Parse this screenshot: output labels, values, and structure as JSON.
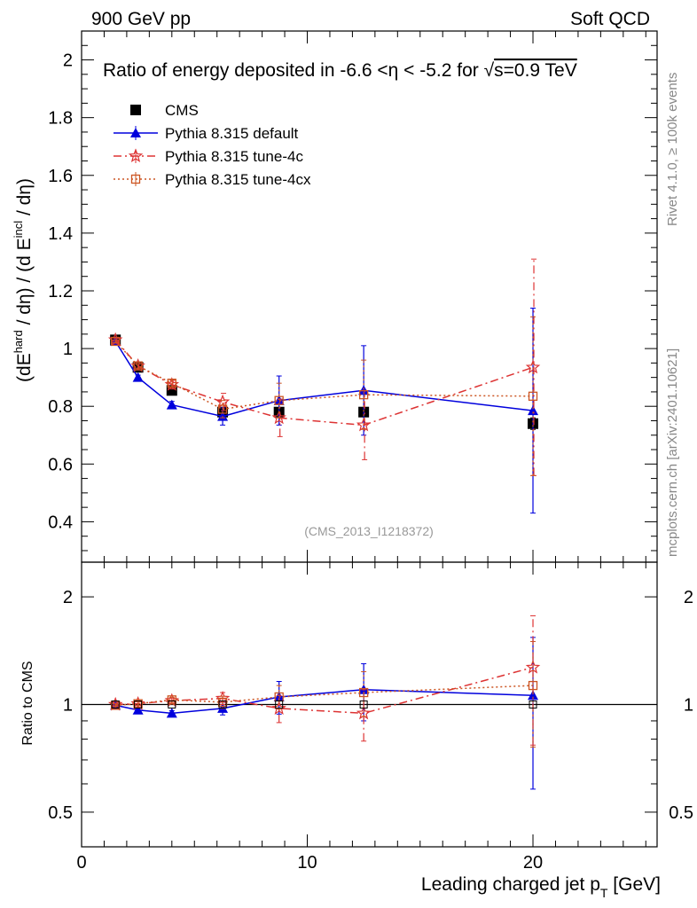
{
  "header": {
    "left": "900 GeV pp",
    "right": "Soft QCD"
  },
  "side_labels": {
    "rivet": "Rivet 4.1.0, ≥ 100k events",
    "mcplots": "mcplots.cern.ch [arXiv:2401.10621]"
  },
  "chart_data": [
    {
      "panel": "main",
      "type": "scatter",
      "title": "Ratio of energy deposited in -6.6 <η < -5.2 for √s=0.9 TeV",
      "title_parts": {
        "prefix": "Ratio of energy deposited in -6.6 <",
        "eta": "η",
        "middle": " < -5.2 for ",
        "sqrt": "√",
        "s_eq": "s=0.9 TeV"
      },
      "ylabel_parts": {
        "open": "(dE",
        "sup1": "hard",
        "mid": " / dη) / (d E",
        "sup2": "incl",
        "close": " / dη)"
      },
      "watermark": "(CMS_2013_I1218372)",
      "xlim": [
        0,
        25.5
      ],
      "ylim": [
        0.26,
        2.1
      ],
      "yticks": [
        0.4,
        0.6,
        0.8,
        1,
        1.2,
        1.4,
        1.6,
        1.8,
        2
      ],
      "ytick_labels": [
        "0.4",
        "0.6",
        "0.8",
        "1",
        "1.2",
        "1.4",
        "1.6",
        "1.8",
        "2"
      ],
      "legend_position": "top-left",
      "series": [
        {
          "name": "CMS",
          "style": "data",
          "color": "#000000",
          "x": [
            1.5,
            2.5,
            4.0,
            6.25,
            8.75,
            12.5,
            20.0
          ],
          "y": [
            1.03,
            0.935,
            0.855,
            0.78,
            0.78,
            0.78,
            0.74
          ],
          "yerr": [
            0.01,
            0.01,
            0.01,
            0.015,
            0.015,
            0.015,
            0.02
          ]
        },
        {
          "name": "Pythia 8.315 default",
          "style": "solid",
          "color": "#0000dd",
          "x": [
            1.5,
            2.5,
            4.0,
            6.25,
            8.75,
            12.5,
            20.0
          ],
          "y": [
            1.025,
            0.9,
            0.805,
            0.765,
            0.82,
            0.855,
            0.785
          ],
          "yerr": [
            0.005,
            0.008,
            0.012,
            0.03,
            0.085,
            0.155,
            0.355
          ]
        },
        {
          "name": "Pythia 8.315 tune-4c",
          "style": "dashdot",
          "color": "#dd3333",
          "x": [
            1.5,
            2.5,
            4.0,
            6.25,
            8.75,
            12.5,
            20.0
          ],
          "y": [
            1.03,
            0.94,
            0.875,
            0.815,
            0.76,
            0.735,
            0.935
          ],
          "yerr": [
            0.005,
            0.008,
            0.015,
            0.03,
            0.065,
            0.12,
            0.375
          ]
        },
        {
          "name": "Pythia 8.315 tune-4cx",
          "style": "dotted",
          "color": "#cc5522",
          "x": [
            1.5,
            2.5,
            4.0,
            6.25,
            8.75,
            12.5,
            20.0
          ],
          "y": [
            1.025,
            0.94,
            0.88,
            0.79,
            0.82,
            0.84,
            0.835
          ],
          "yerr": [
            0.005,
            0.008,
            0.012,
            0.03,
            0.06,
            0.12,
            0.275
          ]
        }
      ]
    },
    {
      "panel": "ratio",
      "type": "scatter",
      "ylabel": "Ratio to CMS",
      "xlabel_prefix": "Leading charged jet p",
      "xlabel_sub": "T",
      "xlabel_suffix": " [GeV]",
      "xlim": [
        0,
        25.5
      ],
      "ylim": [
        0.4,
        2.5
      ],
      "yscale": "log",
      "xticks": [
        0,
        10,
        20
      ],
      "xtick_labels": [
        "0",
        "10",
        "20"
      ],
      "yticks": [
        0.5,
        1,
        2
      ],
      "ytick_labels": [
        "0.5",
        "1",
        "2"
      ],
      "reference_line": 1,
      "series": [
        {
          "name": "Pythia 8.315 default",
          "color": "#0000dd",
          "x": [
            1.5,
            2.5,
            4.0,
            6.25,
            8.75,
            12.5,
            20.0
          ],
          "y": [
            0.995,
            0.965,
            0.945,
            0.975,
            1.05,
            1.1,
            1.06
          ],
          "yerr": [
            0.008,
            0.012,
            0.016,
            0.04,
            0.11,
            0.2,
            0.48
          ]
        },
        {
          "name": "Pythia 8.315 tune-4c",
          "color": "#dd3333",
          "x": [
            1.5,
            2.5,
            4.0,
            6.25,
            8.75,
            12.5,
            20.0
          ],
          "y": [
            1.0,
            1.005,
            1.025,
            1.04,
            0.975,
            0.945,
            1.27
          ],
          "yerr": [
            0.008,
            0.012,
            0.018,
            0.04,
            0.085,
            0.155,
            0.5
          ]
        },
        {
          "name": "Pythia 8.315 tune-4cx",
          "color": "#cc5522",
          "x": [
            1.5,
            2.5,
            4.0,
            6.25,
            8.75,
            12.5,
            20.0
          ],
          "y": [
            0.995,
            1.005,
            1.03,
            1.015,
            1.05,
            1.08,
            1.13
          ],
          "yerr": [
            0.008,
            0.012,
            0.016,
            0.04,
            0.08,
            0.155,
            0.37
          ]
        }
      ]
    }
  ]
}
